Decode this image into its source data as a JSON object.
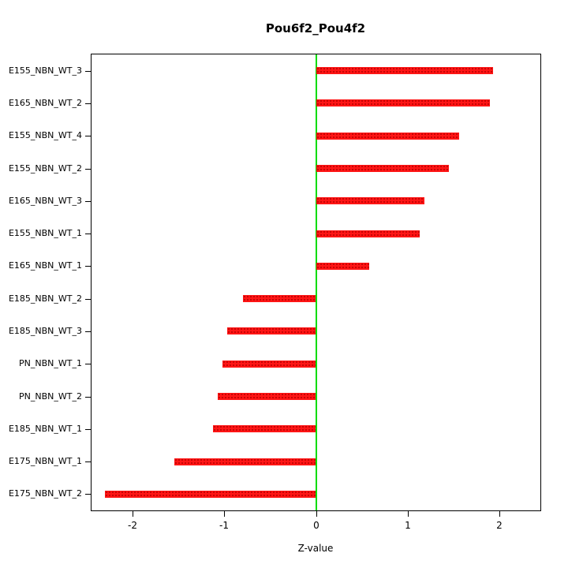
{
  "chart_data": {
    "type": "bar",
    "orientation": "horizontal",
    "title": "Pou6f2_Pou4f2",
    "xlabel": "Z-value",
    "ylabel": "",
    "categories": [
      "E155_NBN_WT_3",
      "E165_NBN_WT_2",
      "E155_NBN_WT_4",
      "E155_NBN_WT_2",
      "E165_NBN_WT_3",
      "E155_NBN_WT_1",
      "E165_NBN_WT_1",
      "E185_NBN_WT_2",
      "E185_NBN_WT_3",
      "PN_NBN_WT_1",
      "PN_NBN_WT_2",
      "E185_NBN_WT_1",
      "E175_NBN_WT_1",
      "E175_NBN_WT_2"
    ],
    "values": [
      1.93,
      1.9,
      1.56,
      1.45,
      1.18,
      1.13,
      0.58,
      -0.8,
      -0.97,
      -1.02,
      -1.07,
      -1.12,
      -1.55,
      -2.3
    ],
    "xlim": [
      -2.45,
      2.45
    ],
    "xticks": [
      -2,
      -1,
      0,
      1,
      2
    ],
    "grid": false,
    "legend": "none",
    "bar_color": "#ff1515",
    "zero_line_color": "#00dd00"
  }
}
